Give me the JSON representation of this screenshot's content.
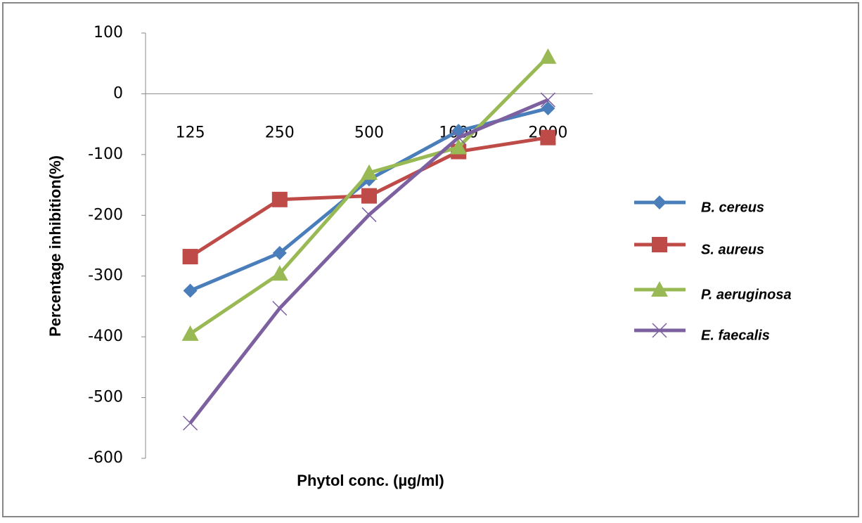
{
  "chart_data": {
    "type": "line",
    "y_label": "Percentage inhibition(%)",
    "x_label": "Phytol conc. (µg/ml)",
    "categories": [
      "125",
      "250",
      "500",
      "1000",
      "2000"
    ],
    "ylim": [
      -600,
      100
    ],
    "yticks": [
      100,
      0,
      -100,
      -200,
      -300,
      -400,
      -500,
      -600
    ],
    "series": [
      {
        "name": "B. cereus",
        "color": "#4a7ebb",
        "marker": "diamond",
        "values": [
          -324,
          -262,
          -141,
          -61,
          -24
        ]
      },
      {
        "name": "S. aureus",
        "color": "#be4b48",
        "marker": "square",
        "values": [
          -268,
          -174,
          -168,
          -95,
          -72
        ]
      },
      {
        "name": "P. aeruginosa",
        "color": "#98b954",
        "marker": "triangle",
        "values": [
          -395,
          -296,
          -130,
          -88,
          61
        ]
      },
      {
        "name": "E. faecalis",
        "color": "#7d60a0",
        "marker": "x",
        "values": [
          -542,
          -353,
          -199,
          -72,
          -10
        ]
      }
    ]
  }
}
